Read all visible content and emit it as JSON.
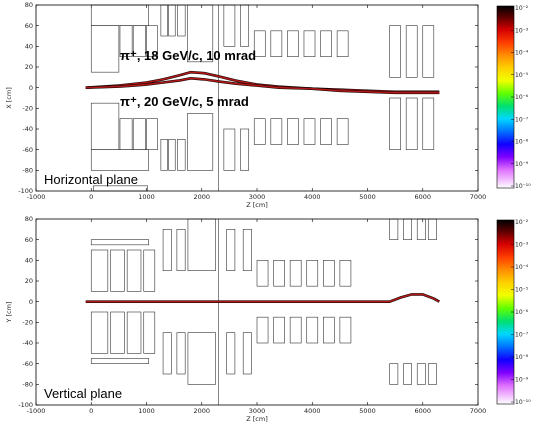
{
  "chart_data": [
    {
      "type": "heatmap",
      "panel": "top",
      "xlabel": "Z [cm]",
      "ylabel": "X [cm]",
      "xlim": [
        -1000,
        7000
      ],
      "ylim": [
        -100,
        80
      ],
      "x_ticks": [
        -1000,
        0,
        1000,
        2000,
        3000,
        4000,
        5000,
        6000,
        7000
      ],
      "y_ticks": [
        -100,
        -80,
        -60,
        -40,
        -20,
        0,
        20,
        40,
        60,
        80
      ],
      "plane_label": "Horizontal plane",
      "annotations": [
        {
          "text": "π⁺, 18 GeV/c, 10 mrad",
          "x": 450,
          "y": 47
        },
        {
          "text": "π⁺, 20 GeV/c, 5 mrad",
          "x": 450,
          "y": -10
        }
      ],
      "colorbar": {
        "ticks": [
          "10⁻²",
          "10⁻³",
          "10⁻⁴",
          "10⁻⁵",
          "10⁻⁶",
          "10⁻⁷",
          "10⁻⁸",
          "10⁻⁹",
          "10⁻¹⁰"
        ]
      },
      "beams": [
        {
          "name": "",
          "color": "#b01818",
          "x": [
            -100,
            500,
            1000,
            1300,
            1600,
            1800,
            2050,
            2300,
            2600,
            3000,
            3400,
            4000,
            4500,
            5000,
            5500,
            6000,
            6300
          ],
          "y": [
            0,
            2,
            5,
            8,
            12,
            15,
            14,
            11,
            7,
            3,
            1,
            -1,
            -2,
            -3,
            -4,
            -4,
            -4
          ]
        },
        {
          "name": "",
          "color": "#b01818",
          "x": [
            -100,
            500,
            1000,
            1300,
            1600,
            1800,
            2050,
            2300,
            2600,
            3000,
            3400,
            4000,
            4500,
            5000,
            5500,
            6000,
            6300
          ],
          "y": [
            0,
            1,
            3,
            5,
            7,
            9,
            8,
            6,
            4,
            2,
            0,
            -1,
            -3,
            -4,
            -5,
            -5,
            -5
          ]
        }
      ]
    },
    {
      "type": "heatmap",
      "panel": "bottom",
      "xlabel": "Z [cm]",
      "ylabel": "Y [cm]",
      "xlim": [
        -1000,
        7000
      ],
      "ylim": [
        -100,
        80
      ],
      "x_ticks": [
        -1000,
        0,
        1000,
        2000,
        3000,
        4000,
        5000,
        6000,
        7000
      ],
      "y_ticks": [
        -100,
        -80,
        -60,
        -40,
        -20,
        0,
        20,
        40,
        60,
        80
      ],
      "plane_label": "Vertical plane",
      "colorbar": {
        "ticks": [
          "10⁻²",
          "10⁻³",
          "10⁻⁴",
          "10⁻⁵",
          "10⁻⁶",
          "10⁻⁷",
          "10⁻⁸",
          "10⁻⁹",
          "10⁻¹⁰"
        ]
      },
      "beams": [
        {
          "name": "",
          "color": "#b01818",
          "x": [
            -100,
            1000,
            2000,
            3000,
            4000,
            4800,
            5400,
            5600,
            5800,
            6000,
            6200,
            6300
          ],
          "y": [
            0,
            0,
            0,
            0,
            0,
            0,
            0,
            4,
            7,
            7,
            3,
            0
          ]
        }
      ]
    }
  ]
}
